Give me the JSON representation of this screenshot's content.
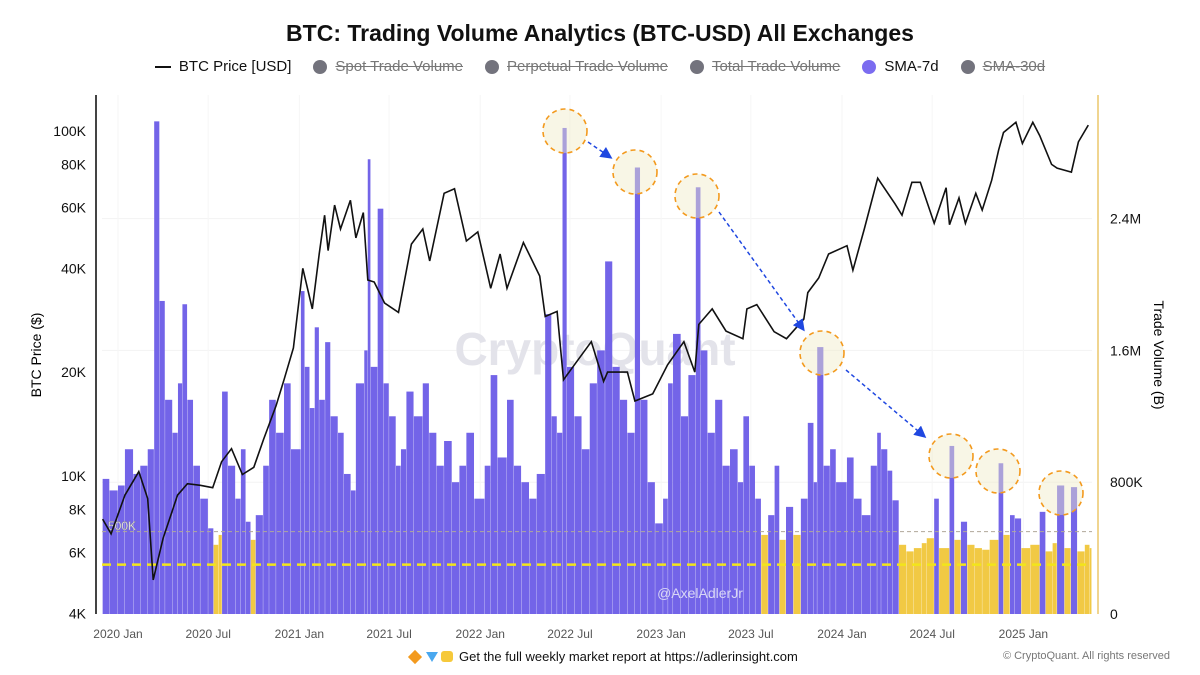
{
  "chart_data": {
    "type": "bar+line",
    "title": "BTC: Trading Volume Analytics (BTC-USD) All Exchanges",
    "legend": [
      {
        "label": "BTC Price [USD]",
        "color": "#111111",
        "style": "line",
        "active": true
      },
      {
        "label": "Spot Trade Volume",
        "color": "#73737d",
        "style": "dot",
        "active": false
      },
      {
        "label": "Perpetual Trade Volume",
        "color": "#73737d",
        "style": "dot",
        "active": false
      },
      {
        "label": "Total Trade Volume",
        "color": "#73737d",
        "style": "dot",
        "active": false
      },
      {
        "label": "SMA-7d",
        "color": "#7b6cf0",
        "style": "dot",
        "active": true
      },
      {
        "label": "SMA-30d",
        "color": "#73737d",
        "style": "dot",
        "active": false
      }
    ],
    "legend_position": "top",
    "ylabel_left": "BTC Price ($)",
    "ylabel_right": "Trade Volume (B)",
    "y_left_scale": "log",
    "y_left_range": [
      4000,
      127000
    ],
    "y_left_ticks": [
      {
        "v": 4000,
        "label": "4K"
      },
      {
        "v": 6000,
        "label": "6K"
      },
      {
        "v": 8000,
        "label": "8K"
      },
      {
        "v": 10000,
        "label": "10K"
      },
      {
        "v": 20000,
        "label": "20K"
      },
      {
        "v": 40000,
        "label": "40K"
      },
      {
        "v": 60000,
        "label": "60K"
      },
      {
        "v": 80000,
        "label": "80K"
      },
      {
        "v": 100000,
        "label": "100K"
      }
    ],
    "y_right_range": [
      0,
      3150000
    ],
    "y_right_ticks": [
      {
        "v": 0,
        "label": "0"
      },
      {
        "v": 800000,
        "label": "800K"
      },
      {
        "v": 1600000,
        "label": "1.6M"
      },
      {
        "v": 2400000,
        "label": "2.4M"
      }
    ],
    "x_range": [
      "2019-12-01",
      "2025-05-19"
    ],
    "x_ticks": [
      {
        "d": "2020-01-01",
        "label": "2020 Jan"
      },
      {
        "d": "2020-07-01",
        "label": "2020 Jul"
      },
      {
        "d": "2021-01-01",
        "label": "2021 Jan"
      },
      {
        "d": "2021-07-01",
        "label": "2021 Jul"
      },
      {
        "d": "2022-01-01",
        "label": "2022 Jan"
      },
      {
        "d": "2022-07-01",
        "label": "2022 Jul"
      },
      {
        "d": "2023-01-01",
        "label": "2023 Jan"
      },
      {
        "d": "2023-07-01",
        "label": "2023 Jul"
      },
      {
        "d": "2024-01-01",
        "label": "2024 Jan"
      },
      {
        "d": "2024-07-01",
        "label": "2024 Jul"
      },
      {
        "d": "2025-01-01",
        "label": "2025 Jan"
      }
    ],
    "grid": true,
    "reference_lines": [
      {
        "value": 500000,
        "label": "500K",
        "color": "#b0a89a",
        "style": "dashed"
      },
      {
        "value": 300000,
        "label": "",
        "color": "#f2e51a",
        "style": "dashed"
      }
    ],
    "colors": {
      "above_threshold": "#6b5ce7",
      "below_threshold": "#f0c63a",
      "threshold": 500000,
      "price": "#111111",
      "highlight_circle": "#f39a1e",
      "arrow": "#1f47e0"
    },
    "price_series": [
      [
        "2019-12-01",
        7500
      ],
      [
        "2019-12-18",
        6800
      ],
      [
        "2020-01-15",
        8800
      ],
      [
        "2020-02-12",
        10300
      ],
      [
        "2020-03-01",
        8600
      ],
      [
        "2020-03-12",
        5000
      ],
      [
        "2020-04-01",
        6600
      ],
      [
        "2020-04-30",
        8800
      ],
      [
        "2020-05-20",
        9500
      ],
      [
        "2020-06-15",
        9400
      ],
      [
        "2020-07-10",
        9250
      ],
      [
        "2020-07-28",
        11000
      ],
      [
        "2020-08-17",
        12000
      ],
      [
        "2020-09-08",
        10100
      ],
      [
        "2020-10-01",
        10600
      ],
      [
        "2020-10-21",
        12800
      ],
      [
        "2020-11-15",
        16000
      ],
      [
        "2020-12-01",
        19000
      ],
      [
        "2020-12-20",
        23500
      ],
      [
        "2021-01-08",
        40000
      ],
      [
        "2021-01-27",
        30500
      ],
      [
        "2021-02-10",
        44000
      ],
      [
        "2021-02-21",
        57000
      ],
      [
        "2021-02-28",
        45000
      ],
      [
        "2021-03-13",
        61000
      ],
      [
        "2021-03-25",
        52000
      ],
      [
        "2021-04-14",
        63000
      ],
      [
        "2021-04-25",
        49000
      ],
      [
        "2021-05-10",
        58000
      ],
      [
        "2021-05-19",
        37000
      ],
      [
        "2021-06-01",
        36500
      ],
      [
        "2021-06-22",
        31700
      ],
      [
        "2021-07-20",
        29800
      ],
      [
        "2021-08-15",
        47000
      ],
      [
        "2021-09-07",
        52000
      ],
      [
        "2021-09-21",
        42000
      ],
      [
        "2021-10-20",
        66000
      ],
      [
        "2021-11-10",
        68000
      ],
      [
        "2021-12-04",
        48000
      ],
      [
        "2021-12-27",
        51000
      ],
      [
        "2022-01-22",
        35000
      ],
      [
        "2022-02-10",
        44000
      ],
      [
        "2022-02-24",
        35000
      ],
      [
        "2022-03-29",
        47500
      ],
      [
        "2022-05-01",
        38000
      ],
      [
        "2022-05-12",
        29000
      ],
      [
        "2022-06-05",
        30000
      ],
      [
        "2022-06-18",
        19000
      ],
      [
        "2022-07-10",
        21000
      ],
      [
        "2022-08-13",
        24500
      ],
      [
        "2022-09-07",
        18800
      ],
      [
        "2022-09-15",
        20000
      ],
      [
        "2022-10-25",
        20000
      ],
      [
        "2022-11-09",
        16500
      ],
      [
        "2022-12-15",
        17300
      ],
      [
        "2023-01-14",
        21000
      ],
      [
        "2023-02-16",
        24500
      ],
      [
        "2023-03-10",
        20000
      ],
      [
        "2023-03-18",
        27500
      ],
      [
        "2023-04-14",
        30500
      ],
      [
        "2023-05-12",
        26300
      ],
      [
        "2023-06-15",
        25000
      ],
      [
        "2023-06-23",
        30500
      ],
      [
        "2023-07-13",
        31400
      ],
      [
        "2023-08-17",
        26200
      ],
      [
        "2023-09-11",
        25000
      ],
      [
        "2023-10-16",
        28500
      ],
      [
        "2023-10-24",
        34000
      ],
      [
        "2023-11-15",
        37500
      ],
      [
        "2023-12-05",
        44000
      ],
      [
        "2024-01-11",
        46500
      ],
      [
        "2024-01-23",
        39500
      ],
      [
        "2024-02-15",
        52000
      ],
      [
        "2024-03-13",
        73000
      ],
      [
        "2024-04-17",
        61500
      ],
      [
        "2024-05-01",
        57000
      ],
      [
        "2024-05-21",
        71000
      ],
      [
        "2024-06-07",
        71000
      ],
      [
        "2024-07-05",
        54000
      ],
      [
        "2024-07-29",
        68500
      ],
      [
        "2024-08-05",
        53500
      ],
      [
        "2024-08-24",
        64000
      ],
      [
        "2024-09-06",
        54000
      ],
      [
        "2024-09-27",
        66000
      ],
      [
        "2024-10-10",
        59000
      ],
      [
        "2024-10-29",
        72000
      ],
      [
        "2024-11-12",
        88000
      ],
      [
        "2024-11-22",
        99000
      ],
      [
        "2024-12-17",
        106000
      ],
      [
        "2024-12-30",
        92000
      ],
      [
        "2025-01-20",
        106000
      ],
      [
        "2025-02-03",
        97000
      ],
      [
        "2025-02-27",
        80000
      ],
      [
        "2025-03-10",
        78000
      ],
      [
        "2025-04-08",
        76000
      ],
      [
        "2025-04-22",
        93000
      ],
      [
        "2025-05-12",
        104000
      ]
    ],
    "volume_sma7d": [
      [
        "2019-12-01",
        820000
      ],
      [
        "2019-12-15",
        750000
      ],
      [
        "2020-01-01",
        780000
      ],
      [
        "2020-01-15",
        1000000
      ],
      [
        "2020-02-01",
        850000
      ],
      [
        "2020-02-15",
        900000
      ],
      [
        "2020-03-01",
        1000000
      ],
      [
        "2020-03-14",
        2990000
      ],
      [
        "2020-03-25",
        1900000
      ],
      [
        "2020-04-05",
        1300000
      ],
      [
        "2020-04-20",
        1100000
      ],
      [
        "2020-05-01",
        1400000
      ],
      [
        "2020-05-10",
        1880000
      ],
      [
        "2020-05-20",
        1300000
      ],
      [
        "2020-06-01",
        900000
      ],
      [
        "2020-06-15",
        700000
      ],
      [
        "2020-07-01",
        520000
      ],
      [
        "2020-07-12",
        420000
      ],
      [
        "2020-07-22",
        480000
      ],
      [
        "2020-07-29",
        1350000
      ],
      [
        "2020-08-10",
        900000
      ],
      [
        "2020-08-25",
        700000
      ],
      [
        "2020-09-05",
        1000000
      ],
      [
        "2020-09-15",
        560000
      ],
      [
        "2020-09-25",
        450000
      ],
      [
        "2020-10-05",
        600000
      ],
      [
        "2020-10-20",
        900000
      ],
      [
        "2020-11-01",
        1300000
      ],
      [
        "2020-11-15",
        1100000
      ],
      [
        "2020-12-01",
        1400000
      ],
      [
        "2020-12-15",
        1000000
      ],
      [
        "2021-01-04",
        1960000
      ],
      [
        "2021-01-12",
        1500000
      ],
      [
        "2021-01-22",
        1250000
      ],
      [
        "2021-02-01",
        1740000
      ],
      [
        "2021-02-10",
        1300000
      ],
      [
        "2021-02-22",
        1650000
      ],
      [
        "2021-03-05",
        1200000
      ],
      [
        "2021-03-20",
        1100000
      ],
      [
        "2021-04-01",
        850000
      ],
      [
        "2021-04-15",
        750000
      ],
      [
        "2021-04-25",
        1400000
      ],
      [
        "2021-05-12",
        1600000
      ],
      [
        "2021-05-19",
        2760000
      ],
      [
        "2021-05-25",
        1500000
      ],
      [
        "2021-06-08",
        2460000
      ],
      [
        "2021-06-20",
        1400000
      ],
      [
        "2021-07-01",
        1200000
      ],
      [
        "2021-07-15",
        900000
      ],
      [
        "2021-07-25",
        1000000
      ],
      [
        "2021-08-05",
        1350000
      ],
      [
        "2021-08-20",
        1200000
      ],
      [
        "2021-09-07",
        1400000
      ],
      [
        "2021-09-20",
        1100000
      ],
      [
        "2021-10-05",
        900000
      ],
      [
        "2021-10-20",
        1050000
      ],
      [
        "2021-11-05",
        800000
      ],
      [
        "2021-11-20",
        900000
      ],
      [
        "2021-12-04",
        1100000
      ],
      [
        "2021-12-20",
        700000
      ],
      [
        "2022-01-10",
        900000
      ],
      [
        "2022-01-22",
        1450000
      ],
      [
        "2022-02-05",
        950000
      ],
      [
        "2022-02-24",
        1300000
      ],
      [
        "2022-03-10",
        900000
      ],
      [
        "2022-03-25",
        800000
      ],
      [
        "2022-04-10",
        700000
      ],
      [
        "2022-04-25",
        850000
      ],
      [
        "2022-05-12",
        1820000
      ],
      [
        "2022-05-25",
        1200000
      ],
      [
        "2022-06-05",
        1100000
      ],
      [
        "2022-06-16",
        2950000
      ],
      [
        "2022-06-25",
        1500000
      ],
      [
        "2022-07-10",
        1200000
      ],
      [
        "2022-07-25",
        1000000
      ],
      [
        "2022-08-10",
        1400000
      ],
      [
        "2022-08-25",
        1600000
      ],
      [
        "2022-09-10",
        2140000
      ],
      [
        "2022-09-25",
        1500000
      ],
      [
        "2022-10-10",
        1300000
      ],
      [
        "2022-10-25",
        1100000
      ],
      [
        "2022-11-09",
        2710000
      ],
      [
        "2022-11-20",
        1300000
      ],
      [
        "2022-12-05",
        800000
      ],
      [
        "2022-12-20",
        550000
      ],
      [
        "2023-01-05",
        700000
      ],
      [
        "2023-01-15",
        1400000
      ],
      [
        "2023-01-25",
        1700000
      ],
      [
        "2023-02-10",
        1200000
      ],
      [
        "2023-02-25",
        1450000
      ],
      [
        "2023-03-12",
        2590000
      ],
      [
        "2023-03-22",
        1600000
      ],
      [
        "2023-04-05",
        1100000
      ],
      [
        "2023-04-20",
        1300000
      ],
      [
        "2023-05-05",
        900000
      ],
      [
        "2023-05-20",
        1000000
      ],
      [
        "2023-06-05",
        800000
      ],
      [
        "2023-06-16",
        1200000
      ],
      [
        "2023-06-28",
        900000
      ],
      [
        "2023-07-10",
        700000
      ],
      [
        "2023-07-22",
        480000
      ],
      [
        "2023-08-05",
        600000
      ],
      [
        "2023-08-18",
        900000
      ],
      [
        "2023-08-28",
        450000
      ],
      [
        "2023-09-10",
        650000
      ],
      [
        "2023-09-25",
        480000
      ],
      [
        "2023-10-10",
        700000
      ],
      [
        "2023-10-24",
        1160000
      ],
      [
        "2023-11-05",
        800000
      ],
      [
        "2023-11-12",
        1620000
      ],
      [
        "2023-11-25",
        900000
      ],
      [
        "2023-12-08",
        1000000
      ],
      [
        "2023-12-20",
        800000
      ],
      [
        "2024-01-11",
        950000
      ],
      [
        "2024-01-25",
        700000
      ],
      [
        "2024-02-10",
        600000
      ],
      [
        "2024-02-28",
        900000
      ],
      [
        "2024-03-12",
        1100000
      ],
      [
        "2024-03-20",
        1000000
      ],
      [
        "2024-04-02",
        870000
      ],
      [
        "2024-04-12",
        690000
      ],
      [
        "2024-04-25",
        420000
      ],
      [
        "2024-05-10",
        380000
      ],
      [
        "2024-05-25",
        400000
      ],
      [
        "2024-06-10",
        430000
      ],
      [
        "2024-06-20",
        460000
      ],
      [
        "2024-07-05",
        700000
      ],
      [
        "2024-07-15",
        400000
      ],
      [
        "2024-08-05",
        1020000
      ],
      [
        "2024-08-15",
        450000
      ],
      [
        "2024-08-28",
        560000
      ],
      [
        "2024-09-10",
        420000
      ],
      [
        "2024-09-25",
        400000
      ],
      [
        "2024-10-10",
        390000
      ],
      [
        "2024-10-25",
        450000
      ],
      [
        "2024-11-12",
        915000
      ],
      [
        "2024-11-22",
        480000
      ],
      [
        "2024-12-05",
        600000
      ],
      [
        "2024-12-15",
        580000
      ],
      [
        "2024-12-28",
        400000
      ],
      [
        "2025-01-15",
        420000
      ],
      [
        "2025-02-03",
        620000
      ],
      [
        "2025-02-15",
        380000
      ],
      [
        "2025-03-01",
        430000
      ],
      [
        "2025-03-10",
        780000
      ],
      [
        "2025-03-25",
        400000
      ],
      [
        "2025-04-07",
        770000
      ],
      [
        "2025-04-20",
        380000
      ],
      [
        "2025-05-05",
        420000
      ],
      [
        "2025-05-15",
        400000
      ]
    ]
  },
  "watermarks": {
    "brand": "CryptoQuant",
    "author": "@AxelAdlerJr"
  },
  "footer": {
    "promo": "Get the full weekly market report at https://adlerinsight.com",
    "copyright": "© CryptoQuant. All rights reserved"
  }
}
